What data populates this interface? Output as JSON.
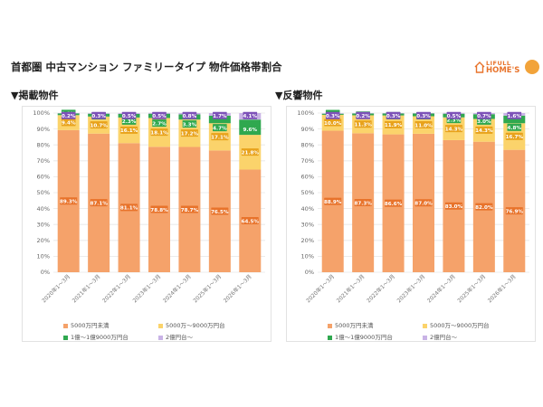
{
  "title": "首都圏 中古マンション ファミリータイプ 物件価格帯割合",
  "logo": {
    "top": "LIFULL",
    "main": "HOME'S"
  },
  "colors": {
    "s1": "#f5a26a",
    "s2": "#fbd36b",
    "s3": "#2fa84f",
    "s4": "#7d52b8",
    "s4_light": "#c9b3e6",
    "lbl1": "#e8732b",
    "lbl2": "#e8a21b",
    "lbl3": "#2fa84f",
    "lbl4": "#7d52b8"
  },
  "legend": [
    "5000万円未満",
    "5000万～9000万円台",
    "1億～1億9000万円台",
    "2億円台～"
  ],
  "chart_data": [
    {
      "type": "bar",
      "title": "▼掲載物件",
      "stacked": true,
      "categories": [
        "2020年1～3月",
        "2021年1～3月",
        "2022年1～3月",
        "2023年1～3月",
        "2024年1～3月",
        "2025年1～3月",
        "2026年1～3月"
      ],
      "ylim": [
        0,
        100
      ],
      "yticks": [
        "0%",
        "10%",
        "20%",
        "30%",
        "40%",
        "50%",
        "60%",
        "70%",
        "80%",
        "90%",
        "100%"
      ],
      "series": [
        {
          "name": "5000万円未満",
          "values": [
            89.3,
            87.1,
            81.1,
            78.8,
            78.7,
            76.5,
            64.5
          ]
        },
        {
          "name": "5000万～9000万円台",
          "values": [
            9.4,
            10.7,
            16.1,
            18.1,
            17.2,
            17.1,
            21.8
          ]
        },
        {
          "name": "1億～1億9000万円台",
          "values": [
            1.1,
            1.8,
            2.3,
            2.7,
            3.3,
            4.7,
            9.6
          ]
        },
        {
          "name": "2億円台～",
          "values": [
            0.2,
            0.3,
            0.5,
            0.5,
            0.8,
            1.7,
            4.1
          ]
        }
      ]
    },
    {
      "type": "bar",
      "title": "▼反響物件",
      "stacked": true,
      "categories": [
        "2020年1～3月",
        "2021年1～3月",
        "2022年1～3月",
        "2023年1～3月",
        "2024年1～3月",
        "2025年1～3月",
        "2026年1～3月"
      ],
      "ylim": [
        0,
        100
      ],
      "yticks": [
        "0%",
        "10%",
        "20%",
        "30%",
        "40%",
        "50%",
        "60%",
        "70%",
        "80%",
        "90%",
        "100%"
      ],
      "series": [
        {
          "name": "5000万円未満",
          "values": [
            88.9,
            87.3,
            86.6,
            87.0,
            83.0,
            82.0,
            76.9
          ]
        },
        {
          "name": "5000万～9000万円台",
          "values": [
            10.0,
            11.3,
            11.9,
            11.0,
            14.3,
            14.3,
            16.7
          ]
        },
        {
          "name": "1億～1億9000万円台",
          "values": [
            0.7,
            1.1,
            1.2,
            1.7,
            2.3,
            3.0,
            4.8
          ]
        },
        {
          "name": "2億円台～",
          "values": [
            0.3,
            0.2,
            0.3,
            0.3,
            0.5,
            0.7,
            1.6
          ]
        }
      ]
    }
  ]
}
